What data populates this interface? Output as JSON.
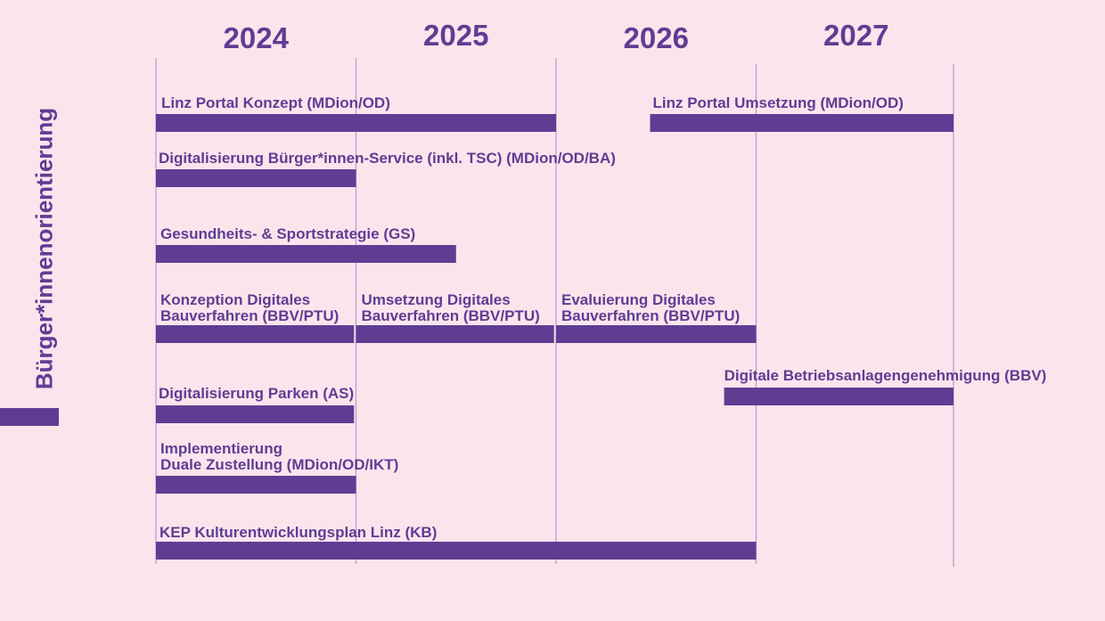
{
  "colors": {
    "background": "#fbe5ed",
    "accent": "#5e3d93",
    "gridline": "#b7a0d0"
  },
  "category_label": "Bürger*innenorientierung",
  "chart_data": {
    "type": "gantt",
    "x_unit": "year",
    "xlim": [
      2024.0,
      2028.0
    ],
    "years": [
      "2024",
      "2025",
      "2026",
      "2027"
    ],
    "tasks": [
      {
        "label_lines": [
          "Linz Portal Konzept (MDion/OD)"
        ],
        "start": 2024.0,
        "end": 2026.0
      },
      {
        "label_lines": [
          "Linz Portal Umsetzung (MDion/OD)"
        ],
        "start": 2026.47,
        "end": 2028.0
      },
      {
        "label_lines": [
          "Digitalisierung Bürger*innen-Service (inkl. TSC) (MDion/OD/BA)"
        ],
        "start": 2024.0,
        "end": 2025.0
      },
      {
        "label_lines": [
          "Gesundheits- & Sportstrategie (GS)"
        ],
        "start": 2024.0,
        "end": 2025.5
      },
      {
        "label_lines": [
          "Konzeption Digitales",
          "Bauverfahren (BBV/PTU)"
        ],
        "start": 2024.0,
        "end": 2024.99
      },
      {
        "label_lines": [
          "Umsetzung Digitales",
          "Bauverfahren (BBV/PTU)"
        ],
        "start": 2025.0,
        "end": 2025.99
      },
      {
        "label_lines": [
          "Evaluierung Digitales",
          "Bauverfahren (BBV/PTU)"
        ],
        "start": 2026.0,
        "end": 2027.0
      },
      {
        "label_lines": [
          "Digitale Betriebsanlagengenehmigung (BBV)"
        ],
        "start": 2026.84,
        "end": 2028.0
      },
      {
        "label_lines": [
          "Digitalisierung Parken (AS)"
        ],
        "start": 2024.0,
        "end": 2024.99
      },
      {
        "label_lines": [
          "Implementierung",
          "Duale Zustellung (MDion/OD/IKT)"
        ],
        "start": 2024.0,
        "end": 2025.0
      },
      {
        "label_lines": [
          "KEP Kulturentwicklungsplan Linz (KB)"
        ],
        "start": 2024.0,
        "end": 2027.0
      }
    ]
  }
}
